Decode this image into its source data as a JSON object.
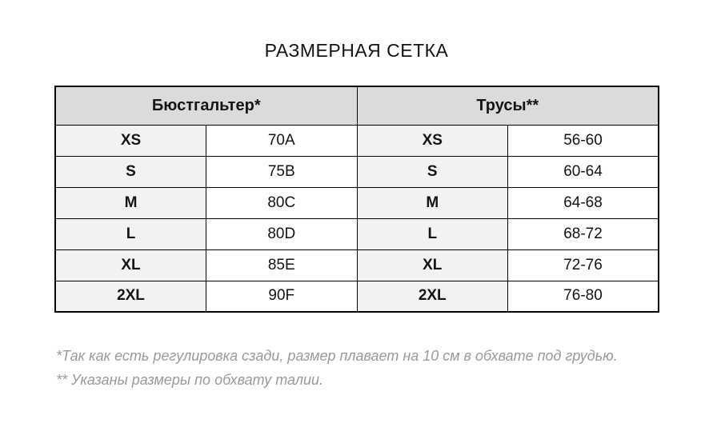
{
  "page": {
    "title": "РАЗМЕРНАЯ СЕТКА"
  },
  "chart_data": {
    "type": "table",
    "title": "РАЗМЕРНАЯ СЕТКА",
    "column_groups": [
      {
        "label": "Бюстгальтер*"
      },
      {
        "label": "Трусы**"
      }
    ],
    "rows": [
      [
        "XS",
        "70A",
        "XS",
        "56-60"
      ],
      [
        "S",
        "75B",
        "S",
        "60-64"
      ],
      [
        "M",
        "80C",
        "M",
        "64-68"
      ],
      [
        "L",
        "80D",
        "L",
        "68-72"
      ],
      [
        "XL",
        "85E",
        "XL",
        "72-76"
      ],
      [
        "2XL",
        "90F",
        "2XL",
        "76-80"
      ]
    ],
    "footnotes": [
      "*Так как есть регулировка сзади, размер плавает на 10 см в обхвате под грудью.",
      "** Указаны размеры по обхвату талии."
    ]
  },
  "colors": {
    "header_bg": "#dbdbdb",
    "size_cell_bg": "#f2f2f2",
    "value_cell_bg": "#ffffff",
    "border": "#000000",
    "text": "#141414",
    "footnote_text": "#9a9a9a",
    "page_bg": "#ffffff"
  }
}
